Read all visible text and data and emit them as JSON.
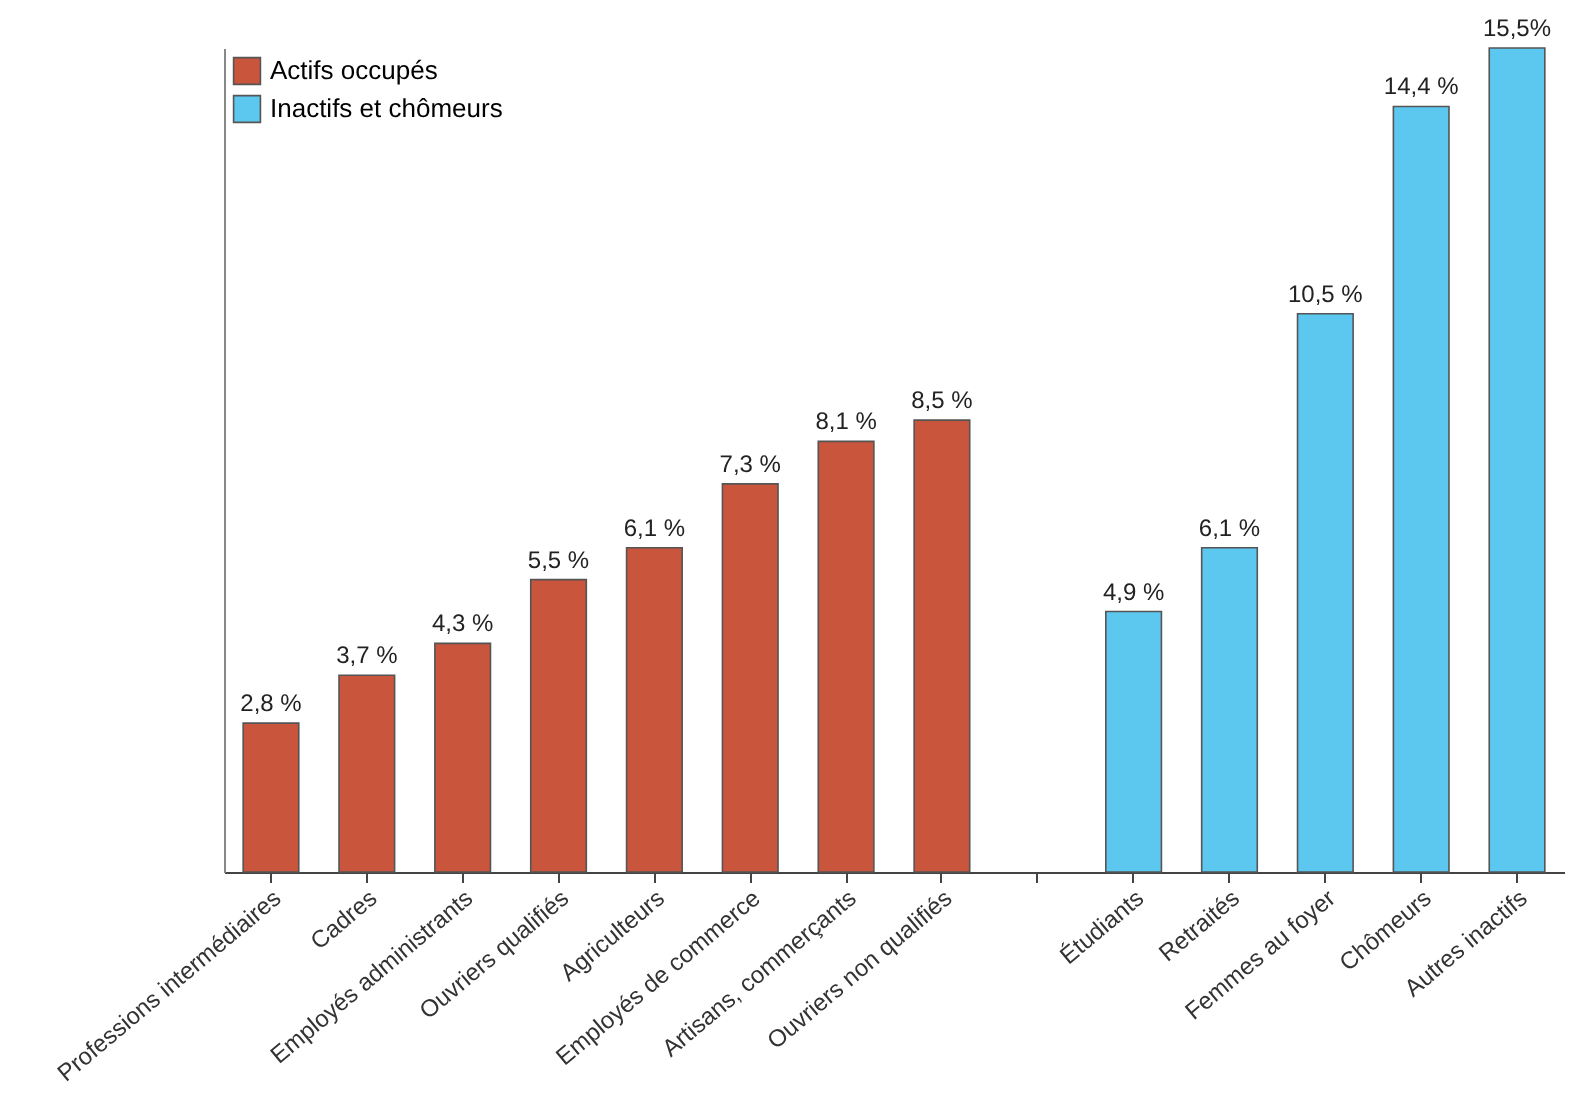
{
  "chart_data": {
    "type": "bar",
    "categories": [
      "Professions intermédiaires",
      "Cadres",
      "Employés administrants",
      "Ouvriers qualifiés",
      "Agriculteurs",
      "Employés de commerce",
      "Artisans, commerçants",
      "Ouvriers non qualifiés",
      null,
      "Étudiants",
      "Retraités",
      "Femmes au foyer",
      "Chômeurs",
      "Autres inactifs"
    ],
    "series": [
      {
        "name": "Actifs occupés",
        "color": "#c9553c",
        "values": [
          2.8,
          3.7,
          4.3,
          5.5,
          6.1,
          7.3,
          8.1,
          8.5,
          null,
          null,
          null,
          null,
          null,
          null
        ],
        "value_labels": [
          "2,8 %",
          "3,7 %",
          "4,3 %",
          "5,5 %",
          "6,1 %",
          "7,3 %",
          "8,1 %",
          "8,5 %",
          null,
          null,
          null,
          null,
          null,
          null
        ]
      },
      {
        "name": "Inactifs et chômeurs",
        "color": "#5cc8f0",
        "values": [
          null,
          null,
          null,
          null,
          null,
          null,
          null,
          null,
          null,
          4.9,
          6.1,
          10.5,
          14.4,
          15.5
        ],
        "value_labels": [
          null,
          null,
          null,
          null,
          null,
          null,
          null,
          null,
          null,
          "4,9 %",
          "6,1 %",
          "10,5 %",
          "14,4 %",
          "15,5%"
        ]
      }
    ],
    "legend": "top left",
    "tick_labels": "x",
    "grid": false
  }
}
